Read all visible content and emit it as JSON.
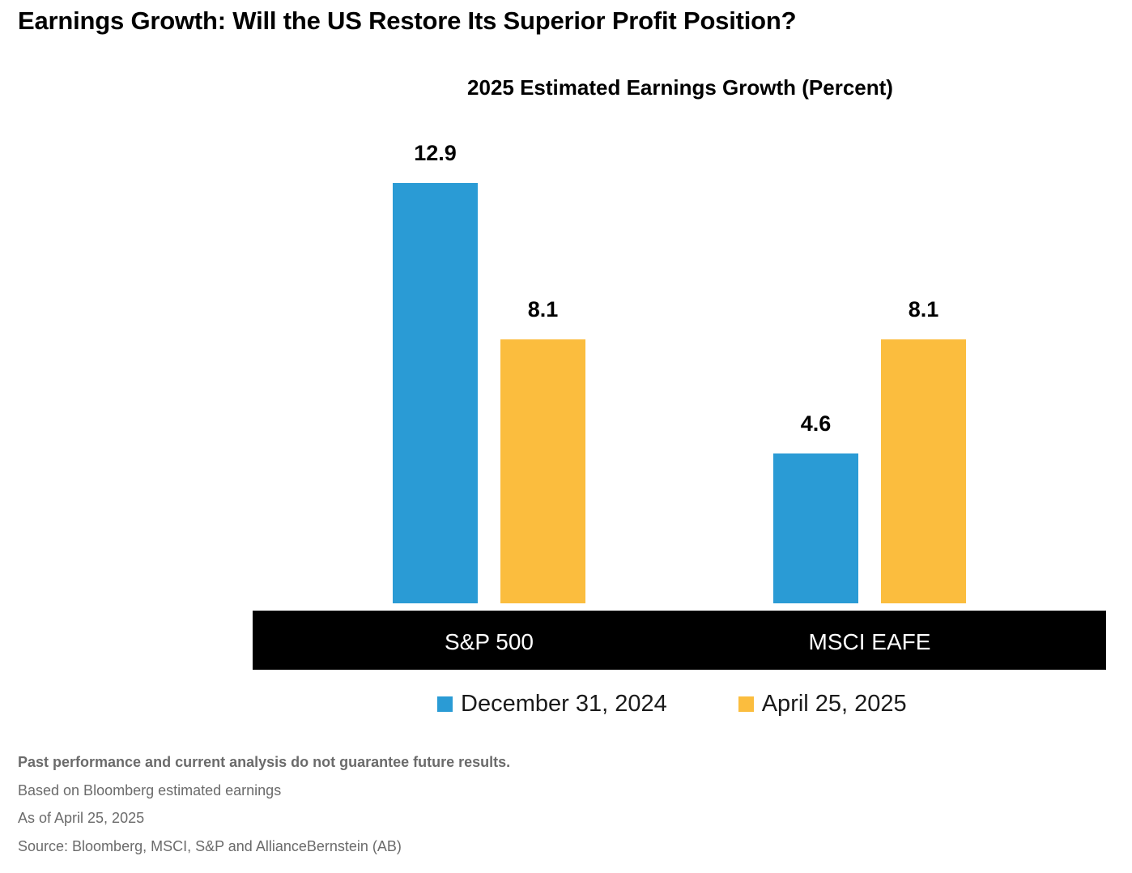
{
  "page": {
    "title": "Earnings Growth: Will the US Restore Its Superior Profit Position?"
  },
  "chart_data": {
    "type": "bar",
    "title": "2025 Estimated Earnings Growth  (Percent)",
    "categories": [
      "S&P 500",
      "MSCI EAFE"
    ],
    "series": [
      {
        "name": "December 31, 2024",
        "color": "#2a9bd5",
        "values": [
          12.9,
          4.6
        ]
      },
      {
        "name": "April 25, 2025",
        "color": "#fbbd3e",
        "values": [
          8.1,
          8.1
        ]
      }
    ],
    "value_labels": [
      [
        "12.9",
        "4.6"
      ],
      [
        "8.1",
        "8.1"
      ]
    ],
    "xlabel": "",
    "ylabel": "",
    "ylim": [
      0,
      12.9
    ],
    "grid": false,
    "legend": "bottom-center"
  },
  "footnotes": {
    "disclaimer": "Past performance and current analysis do not guarantee future results.",
    "basis": "Based on Bloomberg estimated earnings",
    "as_of": "As of April 25, 2025",
    "source": "Source: Bloomberg, MSCI, S&P and AllianceBernstein (AB)"
  }
}
